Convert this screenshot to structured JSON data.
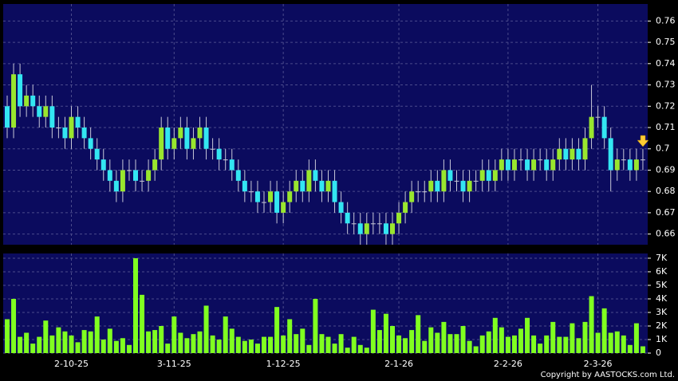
{
  "chart_data": [
    {
      "type": "candlestick",
      "grid": true,
      "up_color": "#99e62e",
      "down_color": "#33e6f2",
      "open": [
        0.72,
        0.71,
        0.735,
        0.72,
        0.725,
        0.72,
        0.715,
        0.72,
        0.71,
        0.71,
        0.705,
        0.715,
        0.71,
        0.705,
        0.7,
        0.695,
        0.69,
        0.685,
        0.68,
        0.69,
        0.69,
        0.685,
        0.685,
        0.69,
        0.695,
        0.71,
        0.7,
        0.705,
        0.71,
        0.7,
        0.705,
        0.71,
        0.7,
        0.7,
        0.695,
        0.695,
        0.69,
        0.685,
        0.68,
        0.68,
        0.675,
        0.675,
        0.68,
        0.67,
        0.675,
        0.68,
        0.685,
        0.68,
        0.69,
        0.685,
        0.68,
        0.685,
        0.675,
        0.67,
        0.665,
        0.665,
        0.66,
        0.665,
        0.665,
        0.665,
        0.66,
        0.665,
        0.67,
        0.675,
        0.68,
        0.68,
        0.68,
        0.685,
        0.68,
        0.69,
        0.685,
        0.685,
        0.68,
        0.685,
        0.685,
        0.69,
        0.685,
        0.69,
        0.695,
        0.69,
        0.695,
        0.695,
        0.69,
        0.695,
        0.695,
        0.69,
        0.695,
        0.7,
        0.695,
        0.7,
        0.695,
        0.705,
        0.715,
        0.715,
        0.705,
        0.69,
        0.695,
        0.695,
        0.69,
        0.695
      ],
      "high": [
        0.725,
        0.74,
        0.74,
        0.73,
        0.73,
        0.725,
        0.725,
        0.725,
        0.715,
        0.715,
        0.72,
        0.72,
        0.715,
        0.71,
        0.705,
        0.7,
        0.695,
        0.69,
        0.695,
        0.695,
        0.695,
        0.69,
        0.695,
        0.7,
        0.715,
        0.715,
        0.71,
        0.715,
        0.715,
        0.71,
        0.715,
        0.715,
        0.705,
        0.705,
        0.7,
        0.7,
        0.695,
        0.69,
        0.685,
        0.685,
        0.68,
        0.685,
        0.685,
        0.68,
        0.685,
        0.69,
        0.69,
        0.695,
        0.695,
        0.69,
        0.69,
        0.69,
        0.68,
        0.675,
        0.67,
        0.67,
        0.67,
        0.67,
        0.67,
        0.67,
        0.67,
        0.675,
        0.68,
        0.685,
        0.685,
        0.685,
        0.69,
        0.69,
        0.695,
        0.695,
        0.69,
        0.69,
        0.69,
        0.69,
        0.695,
        0.695,
        0.695,
        0.7,
        0.7,
        0.7,
        0.7,
        0.7,
        0.7,
        0.7,
        0.7,
        0.7,
        0.705,
        0.705,
        0.705,
        0.705,
        0.71,
        0.73,
        0.72,
        0.72,
        0.71,
        0.7,
        0.7,
        0.7,
        0.7,
        0.7
      ],
      "low": [
        0.705,
        0.705,
        0.715,
        0.715,
        0.715,
        0.71,
        0.71,
        0.705,
        0.705,
        0.7,
        0.7,
        0.705,
        0.7,
        0.695,
        0.69,
        0.685,
        0.68,
        0.675,
        0.675,
        0.685,
        0.68,
        0.68,
        0.68,
        0.685,
        0.69,
        0.695,
        0.695,
        0.7,
        0.695,
        0.695,
        0.7,
        0.695,
        0.695,
        0.69,
        0.69,
        0.685,
        0.68,
        0.675,
        0.675,
        0.67,
        0.67,
        0.67,
        0.665,
        0.665,
        0.67,
        0.675,
        0.675,
        0.675,
        0.68,
        0.675,
        0.675,
        0.67,
        0.665,
        0.66,
        0.66,
        0.655,
        0.655,
        0.66,
        0.66,
        0.655,
        0.655,
        0.66,
        0.665,
        0.67,
        0.675,
        0.675,
        0.675,
        0.675,
        0.675,
        0.68,
        0.68,
        0.675,
        0.675,
        0.68,
        0.68,
        0.68,
        0.68,
        0.685,
        0.685,
        0.685,
        0.69,
        0.685,
        0.685,
        0.69,
        0.685,
        0.685,
        0.69,
        0.69,
        0.69,
        0.69,
        0.69,
        0.7,
        0.71,
        0.7,
        0.68,
        0.685,
        0.69,
        0.685,
        0.685,
        0.69
      ],
      "close": [
        0.71,
        0.735,
        0.72,
        0.725,
        0.72,
        0.715,
        0.72,
        0.71,
        0.71,
        0.705,
        0.715,
        0.71,
        0.705,
        0.7,
        0.695,
        0.69,
        0.685,
        0.68,
        0.69,
        0.69,
        0.685,
        0.685,
        0.69,
        0.695,
        0.71,
        0.7,
        0.705,
        0.71,
        0.7,
        0.705,
        0.71,
        0.7,
        0.7,
        0.695,
        0.695,
        0.69,
        0.685,
        0.68,
        0.68,
        0.675,
        0.675,
        0.68,
        0.67,
        0.675,
        0.68,
        0.685,
        0.68,
        0.69,
        0.685,
        0.68,
        0.685,
        0.675,
        0.67,
        0.665,
        0.665,
        0.66,
        0.665,
        0.665,
        0.665,
        0.66,
        0.665,
        0.67,
        0.675,
        0.68,
        0.68,
        0.68,
        0.685,
        0.68,
        0.69,
        0.685,
        0.685,
        0.68,
        0.685,
        0.685,
        0.69,
        0.685,
        0.69,
        0.695,
        0.69,
        0.695,
        0.695,
        0.69,
        0.695,
        0.695,
        0.69,
        0.695,
        0.7,
        0.695,
        0.7,
        0.695,
        0.705,
        0.715,
        0.715,
        0.705,
        0.69,
        0.695,
        0.695,
        0.69,
        0.695,
        0.695
      ],
      "ylim": [
        0.655,
        0.768
      ],
      "yticks": [
        0.66,
        0.67,
        0.68,
        0.69,
        0.7,
        0.71,
        0.72,
        0.73,
        0.74,
        0.75,
        0.76
      ]
    },
    {
      "type": "bar",
      "color": "#80ff20",
      "grid": true,
      "categories": [
        null,
        null,
        null,
        null,
        null,
        null,
        null,
        null,
        null,
        null,
        "2-10-25",
        null,
        null,
        null,
        null,
        null,
        null,
        null,
        null,
        null,
        null,
        null,
        null,
        null,
        null,
        null,
        "3-11-25",
        null,
        null,
        null,
        null,
        null,
        null,
        null,
        null,
        null,
        null,
        null,
        null,
        null,
        null,
        null,
        null,
        "1-12-25",
        null,
        null,
        null,
        null,
        null,
        null,
        null,
        null,
        null,
        null,
        null,
        null,
        null,
        null,
        null,
        null,
        null,
        "2-1-26",
        null,
        null,
        null,
        null,
        null,
        null,
        null,
        null,
        null,
        null,
        null,
        null,
        null,
        null,
        null,
        null,
        "2-2-26",
        null,
        null,
        null,
        null,
        null,
        null,
        null,
        null,
        null,
        null,
        null,
        null,
        null,
        "2-3-26",
        null,
        null,
        null,
        null,
        null,
        null,
        null
      ],
      "values": [
        2500,
        4000,
        1200,
        1500,
        700,
        1200,
        2400,
        1300,
        1900,
        1600,
        1300,
        800,
        1700,
        1600,
        2700,
        1000,
        1800,
        900,
        1100,
        600,
        7000,
        4300,
        1600,
        1700,
        2000,
        700,
        2700,
        1500,
        1100,
        1400,
        1600,
        3500,
        1300,
        1000,
        2700,
        1800,
        1200,
        900,
        1000,
        700,
        1200,
        1200,
        3400,
        1300,
        2500,
        1400,
        1800,
        600,
        4000,
        1400,
        1200,
        700,
        1400,
        400,
        1200,
        600,
        400,
        3200,
        1700,
        2900,
        2000,
        1300,
        1100,
        1700,
        2800,
        900,
        1900,
        1500,
        2300,
        1400,
        1400,
        2000,
        900,
        500,
        1300,
        1600,
        2600,
        1900,
        1200,
        1300,
        1800,
        2600,
        1300,
        700,
        1300,
        2300,
        1200,
        1200,
        2200,
        1100,
        2300,
        4200,
        1500,
        3300,
        1500,
        1600,
        1300,
        600,
        2200,
        500
      ],
      "ylim": [
        0,
        7350
      ],
      "yticks": [
        0,
        {
          "value": 1000,
          "label": "1K"
        },
        {
          "value": 2000,
          "label": "2K"
        },
        {
          "value": 3000,
          "label": "3K"
        },
        {
          "value": 4000,
          "label": "4K"
        },
        {
          "value": 5000,
          "label": "5K"
        },
        {
          "value": 6000,
          "label": "6K"
        },
        {
          "value": 7000,
          "label": "7K"
        }
      ]
    }
  ],
  "footer": "Copyright by AASTOCKS.com Ltd."
}
